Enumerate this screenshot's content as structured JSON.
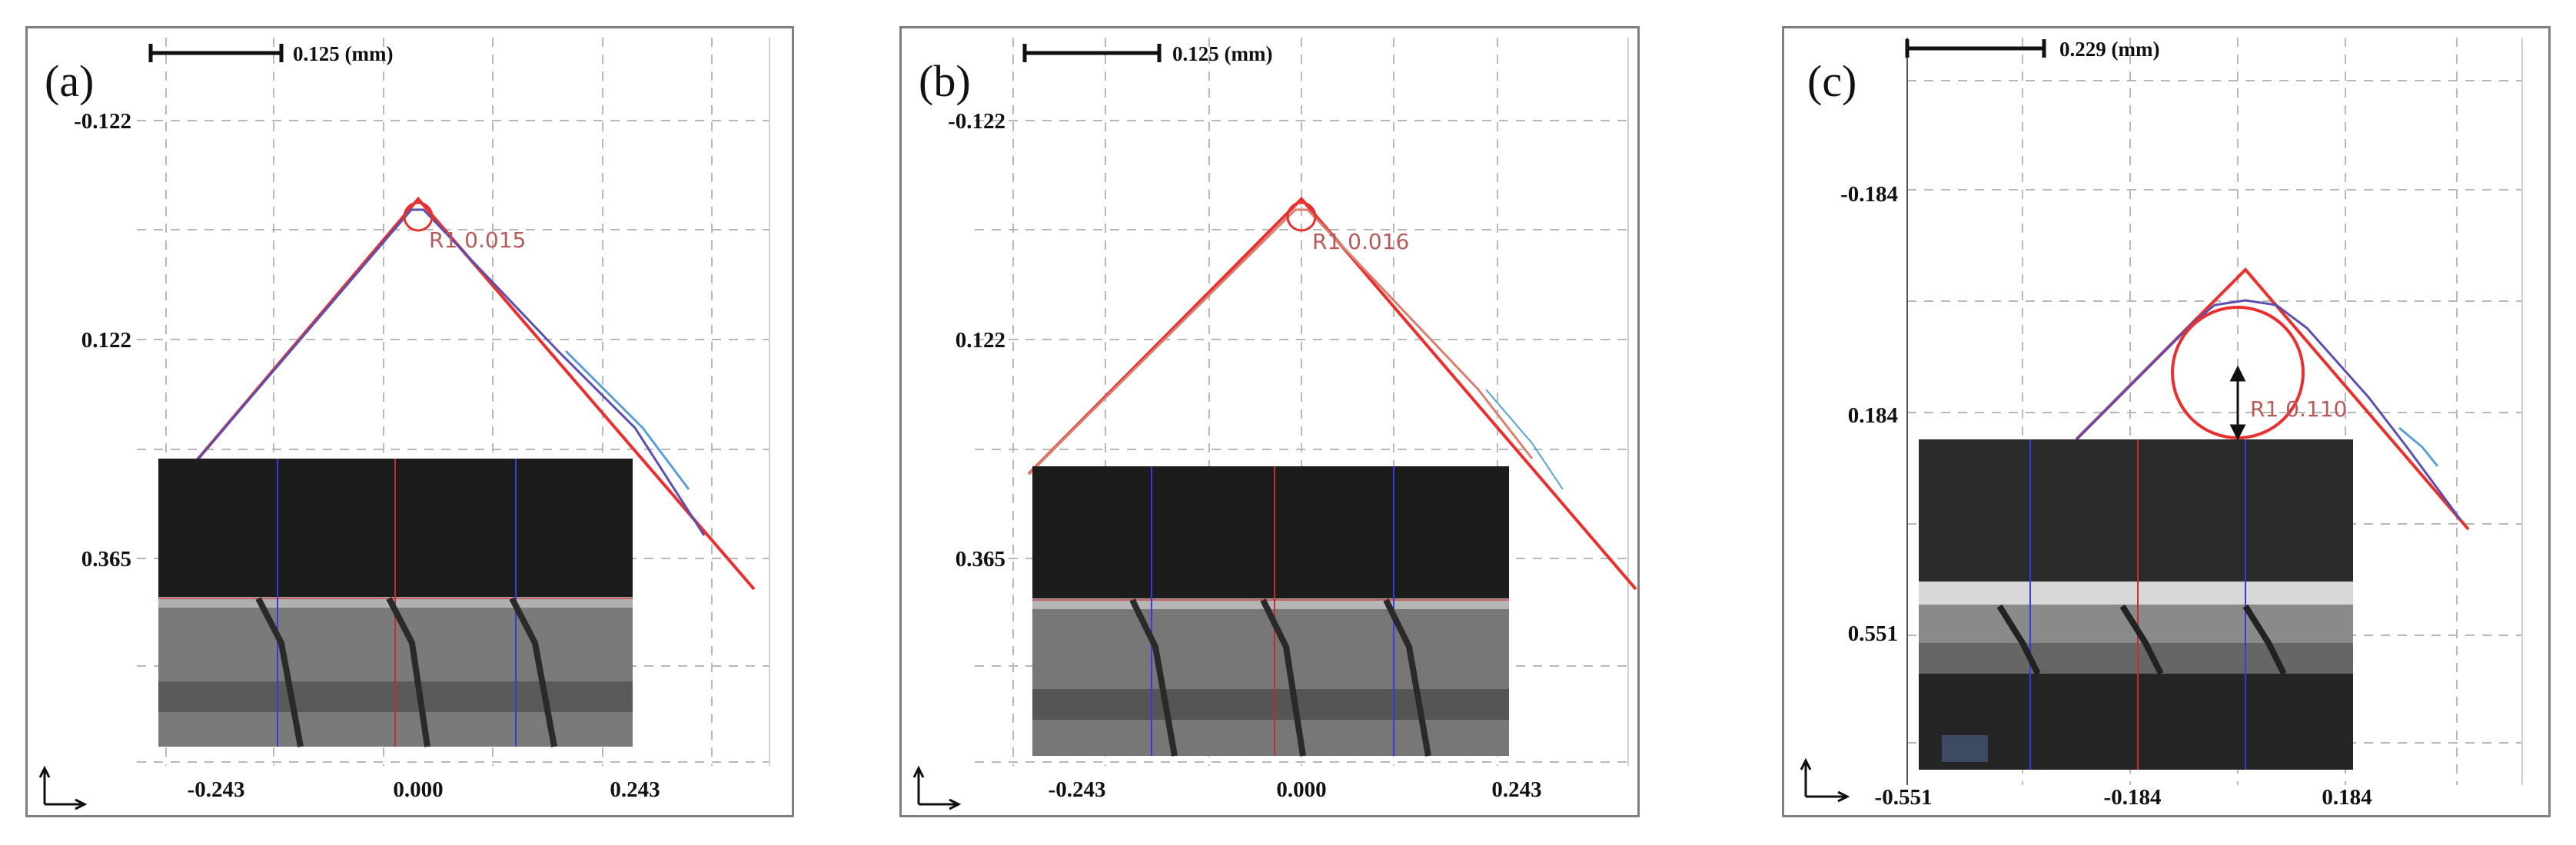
{
  "panels": [
    {
      "label": "(a)",
      "scale_bar": "0.125 (mm)",
      "y_ticks": [
        "-0.122",
        "0.122",
        "0.365"
      ],
      "x_ticks": [
        "-0.243",
        "0.000",
        "0.243"
      ],
      "radius_label": "R1 0.015",
      "tip_radius_mm": 0.015
    },
    {
      "label": "(b)",
      "scale_bar": "0.125 (mm)",
      "y_ticks": [
        "-0.122",
        "0.122",
        "0.365"
      ],
      "x_ticks": [
        "-0.243",
        "0.000",
        "0.243"
      ],
      "radius_label": "R1 0.016",
      "tip_radius_mm": 0.016
    },
    {
      "label": "(c)",
      "scale_bar": "0.229 (mm)",
      "y_ticks": [
        "-0.184",
        "0.184",
        "0.551"
      ],
      "x_ticks": [
        "-0.551",
        "-0.184",
        "0.184"
      ],
      "radius_label": "R1 0.110",
      "tip_radius_mm": 0.11
    }
  ],
  "colors": {
    "fit_line": "#e8312f",
    "profile_line": "#5a4fb0",
    "profile_tail": "#5aa0d8",
    "grid": "#b8b8b8",
    "inset_dark": "#1c1c1c",
    "inset_bright": "#8a8a8a",
    "guide_blue": "#3a3ad8",
    "guide_red": "#c03030"
  }
}
